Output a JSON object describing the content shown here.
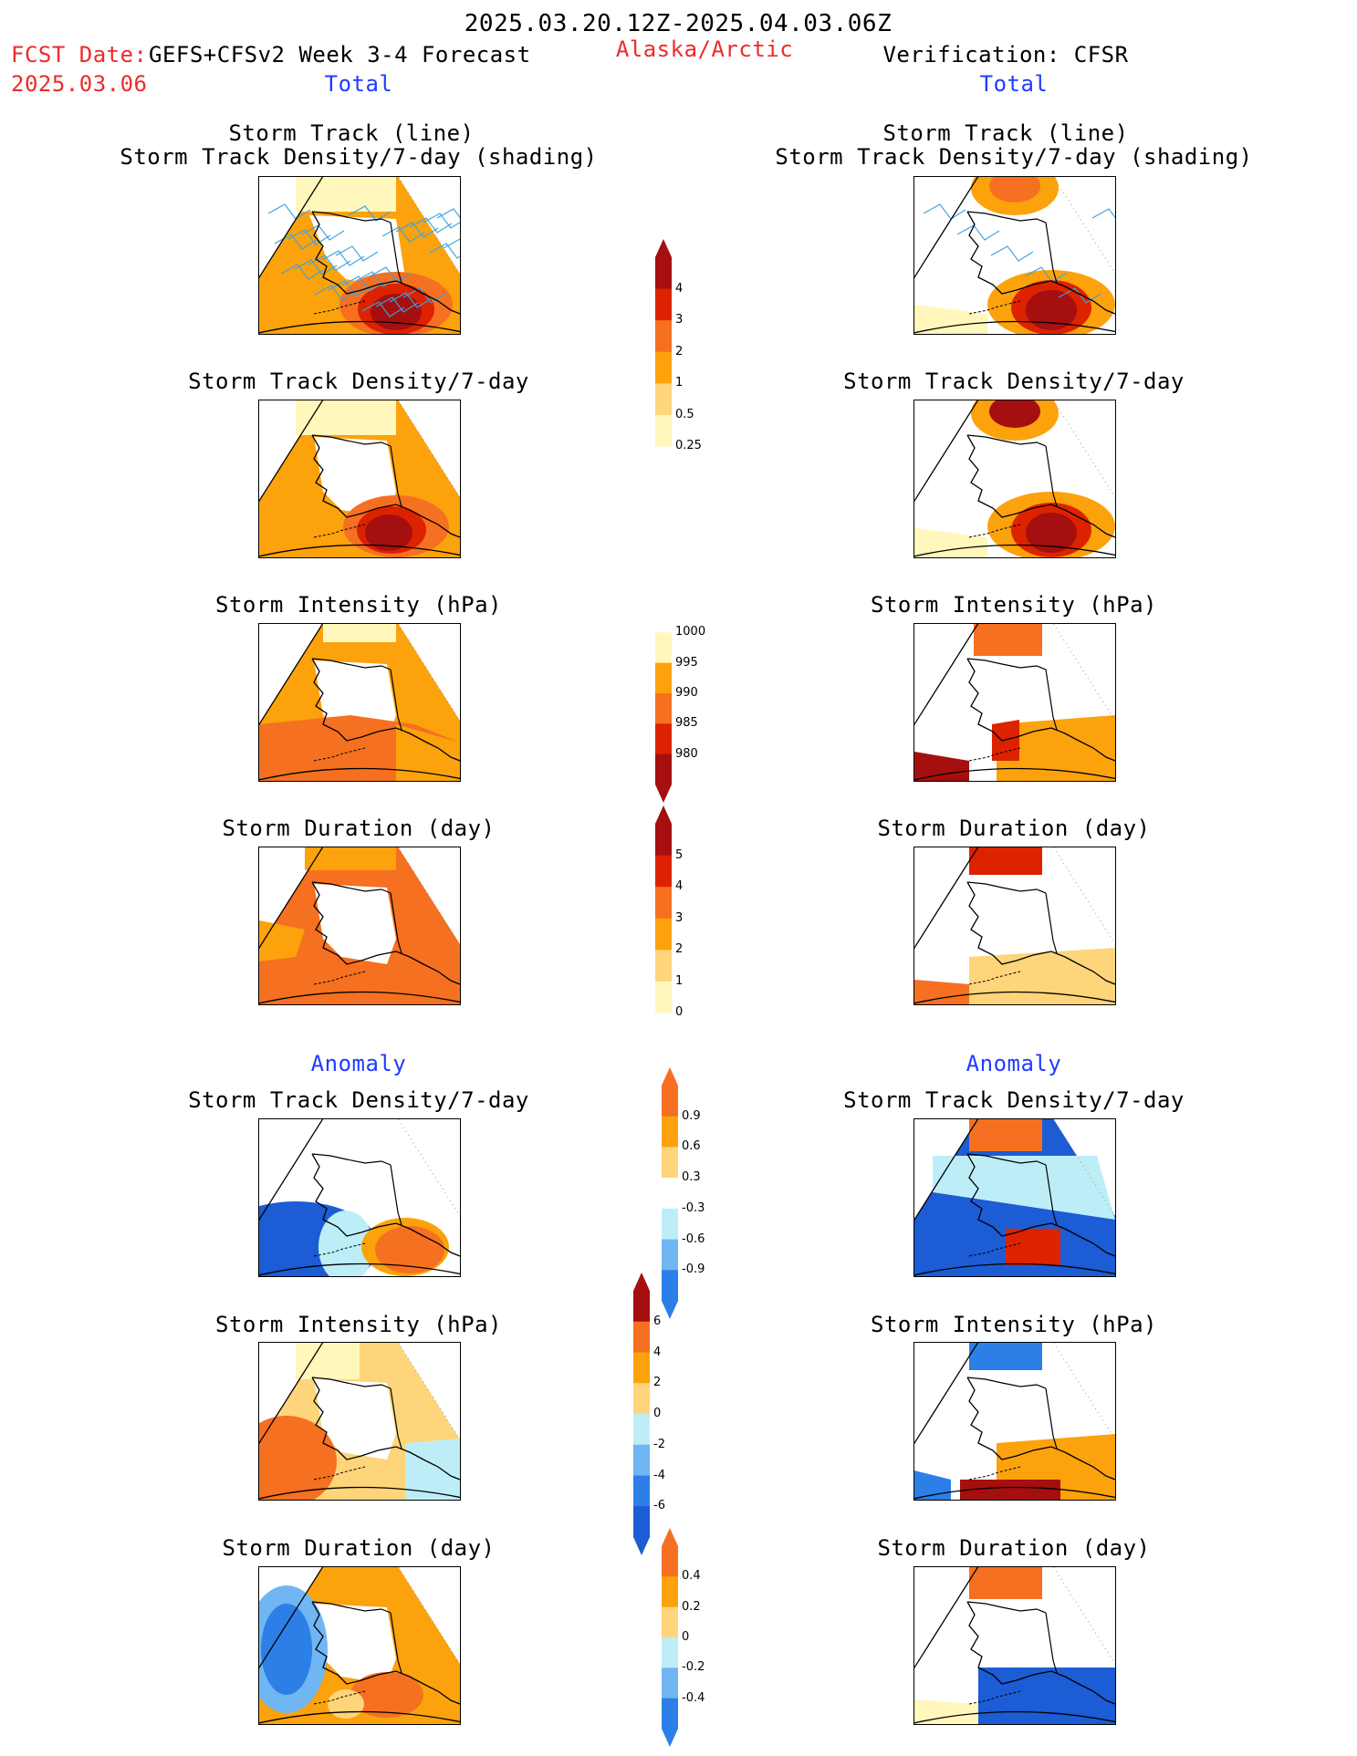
{
  "header": {
    "period": "2025.03.20.12Z-2025.04.03.06Z",
    "fcst_date_label": "FCST Date:",
    "fcst_date": "2025.03.06",
    "forecast_name": "GEFS+CFSv2 Week 3-4 Forecast",
    "region": "Alaska/Arctic",
    "verification": "Verification: CFSR"
  },
  "columns": {
    "left": {
      "section_total": "Total",
      "section_anomaly": "Anomaly"
    },
    "right": {
      "section_total": "Total",
      "section_anomaly": "Anomaly"
    }
  },
  "panels": {
    "track_title_1": "Storm Track (line)",
    "track_title_2": "Storm Track Density/7-day (shading)",
    "density": "Storm Track Density/7-day",
    "intensity": "Storm Intensity (hPa)",
    "duration": "Storm Duration (day)"
  },
  "colorbars": {
    "density_total": [
      "4",
      "3",
      "2",
      "1",
      "0.5",
      "0.25"
    ],
    "intensity_total": [
      "1000",
      "995",
      "990",
      "985",
      "980"
    ],
    "duration_total": [
      "5",
      "4",
      "3",
      "2",
      "1",
      "0"
    ],
    "density_anom": [
      "0.9",
      "0.6",
      "0.3",
      "-0.3",
      "-0.6",
      "-0.9"
    ],
    "intensity_anom": [
      "6",
      "4",
      "2",
      "0",
      "-2",
      "-4",
      "-6"
    ],
    "duration_anom": [
      "0.4",
      "0.2",
      "0",
      "-0.2",
      "-0.4"
    ]
  },
  "colors": {
    "pale_yellow": "#fff7bb",
    "yellow": "#fed57a",
    "orange": "#fca20c",
    "dark_orange": "#f57020",
    "red": "#dd2200",
    "dark_red": "#a50f0f",
    "lt_blue": "#bdeef8",
    "mid_blue": "#6fb6f3",
    "blue": "#2c7fe6",
    "dark_blue": "#1c5cd4",
    "track_line": "#3ba3e0",
    "title_red": "#ee2a2a",
    "title_blue": "#1f3cff"
  }
}
